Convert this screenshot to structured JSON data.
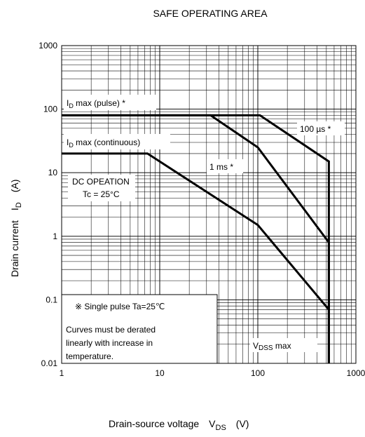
{
  "chart_data": {
    "type": "line",
    "title": "SAFE OPERATING AREA",
    "xscale": "log",
    "yscale": "log",
    "xlim": [
      1,
      1000
    ],
    "ylim": [
      0.01,
      1000
    ],
    "grid": true,
    "xlabel": {
      "main": "Drain-source voltage",
      "sym": "V",
      "sub": "DS",
      "unit": "(V)"
    },
    "ylabel": {
      "main": "Drain current",
      "sym": "I",
      "sub": "D",
      "unit": "(A)"
    },
    "xticks": [
      {
        "v": 1,
        "label": "1"
      },
      {
        "v": 10,
        "label": "10"
      },
      {
        "v": 100,
        "label": "100"
      },
      {
        "v": 1000,
        "label": "1000"
      }
    ],
    "yticks": [
      {
        "v": 0.01,
        "label": "0.01"
      },
      {
        "v": 0.1,
        "label": "0.1"
      },
      {
        "v": 1,
        "label": "1"
      },
      {
        "v": 10,
        "label": "10"
      },
      {
        "v": 100,
        "label": "100"
      },
      {
        "v": 1000,
        "label": "1000"
      }
    ],
    "series": [
      {
        "name": "100 µs *",
        "points": [
          [
            1,
            80
          ],
          [
            105,
            80
          ],
          [
            530,
            15
          ],
          [
            530,
            0.01
          ]
        ]
      },
      {
        "name": "1 ms *",
        "points": [
          [
            1,
            80
          ],
          [
            33,
            80
          ],
          [
            100,
            25
          ],
          [
            530,
            0.8
          ],
          [
            530,
            0.01
          ]
        ]
      },
      {
        "name": "DC OPEATION Tc = 25°C",
        "points": [
          [
            1,
            20
          ],
          [
            7.5,
            20
          ],
          [
            100,
            1.5
          ],
          [
            530,
            0.07
          ],
          [
            530,
            0.01
          ]
        ]
      }
    ],
    "annotations": {
      "id_pulse": {
        "pre": "I",
        "sub": "D",
        "post": " max (pulse) *"
      },
      "id_cont": {
        "pre": "I",
        "sub": "D",
        "post": " max (continuous)"
      },
      "us100": "100 µs *",
      "ms1": "1 ms *",
      "dc1": "DC OPEATION",
      "dc2": "Tc = 25°C",
      "vdss": {
        "pre": "V",
        "sub": "DSS",
        "post": " max"
      }
    },
    "note": {
      "line1": "※ Single pulse Ta=25℃",
      "line2": "Curves must be derated",
      "line3": "linearly with increase in",
      "line4": "temperature."
    }
  }
}
